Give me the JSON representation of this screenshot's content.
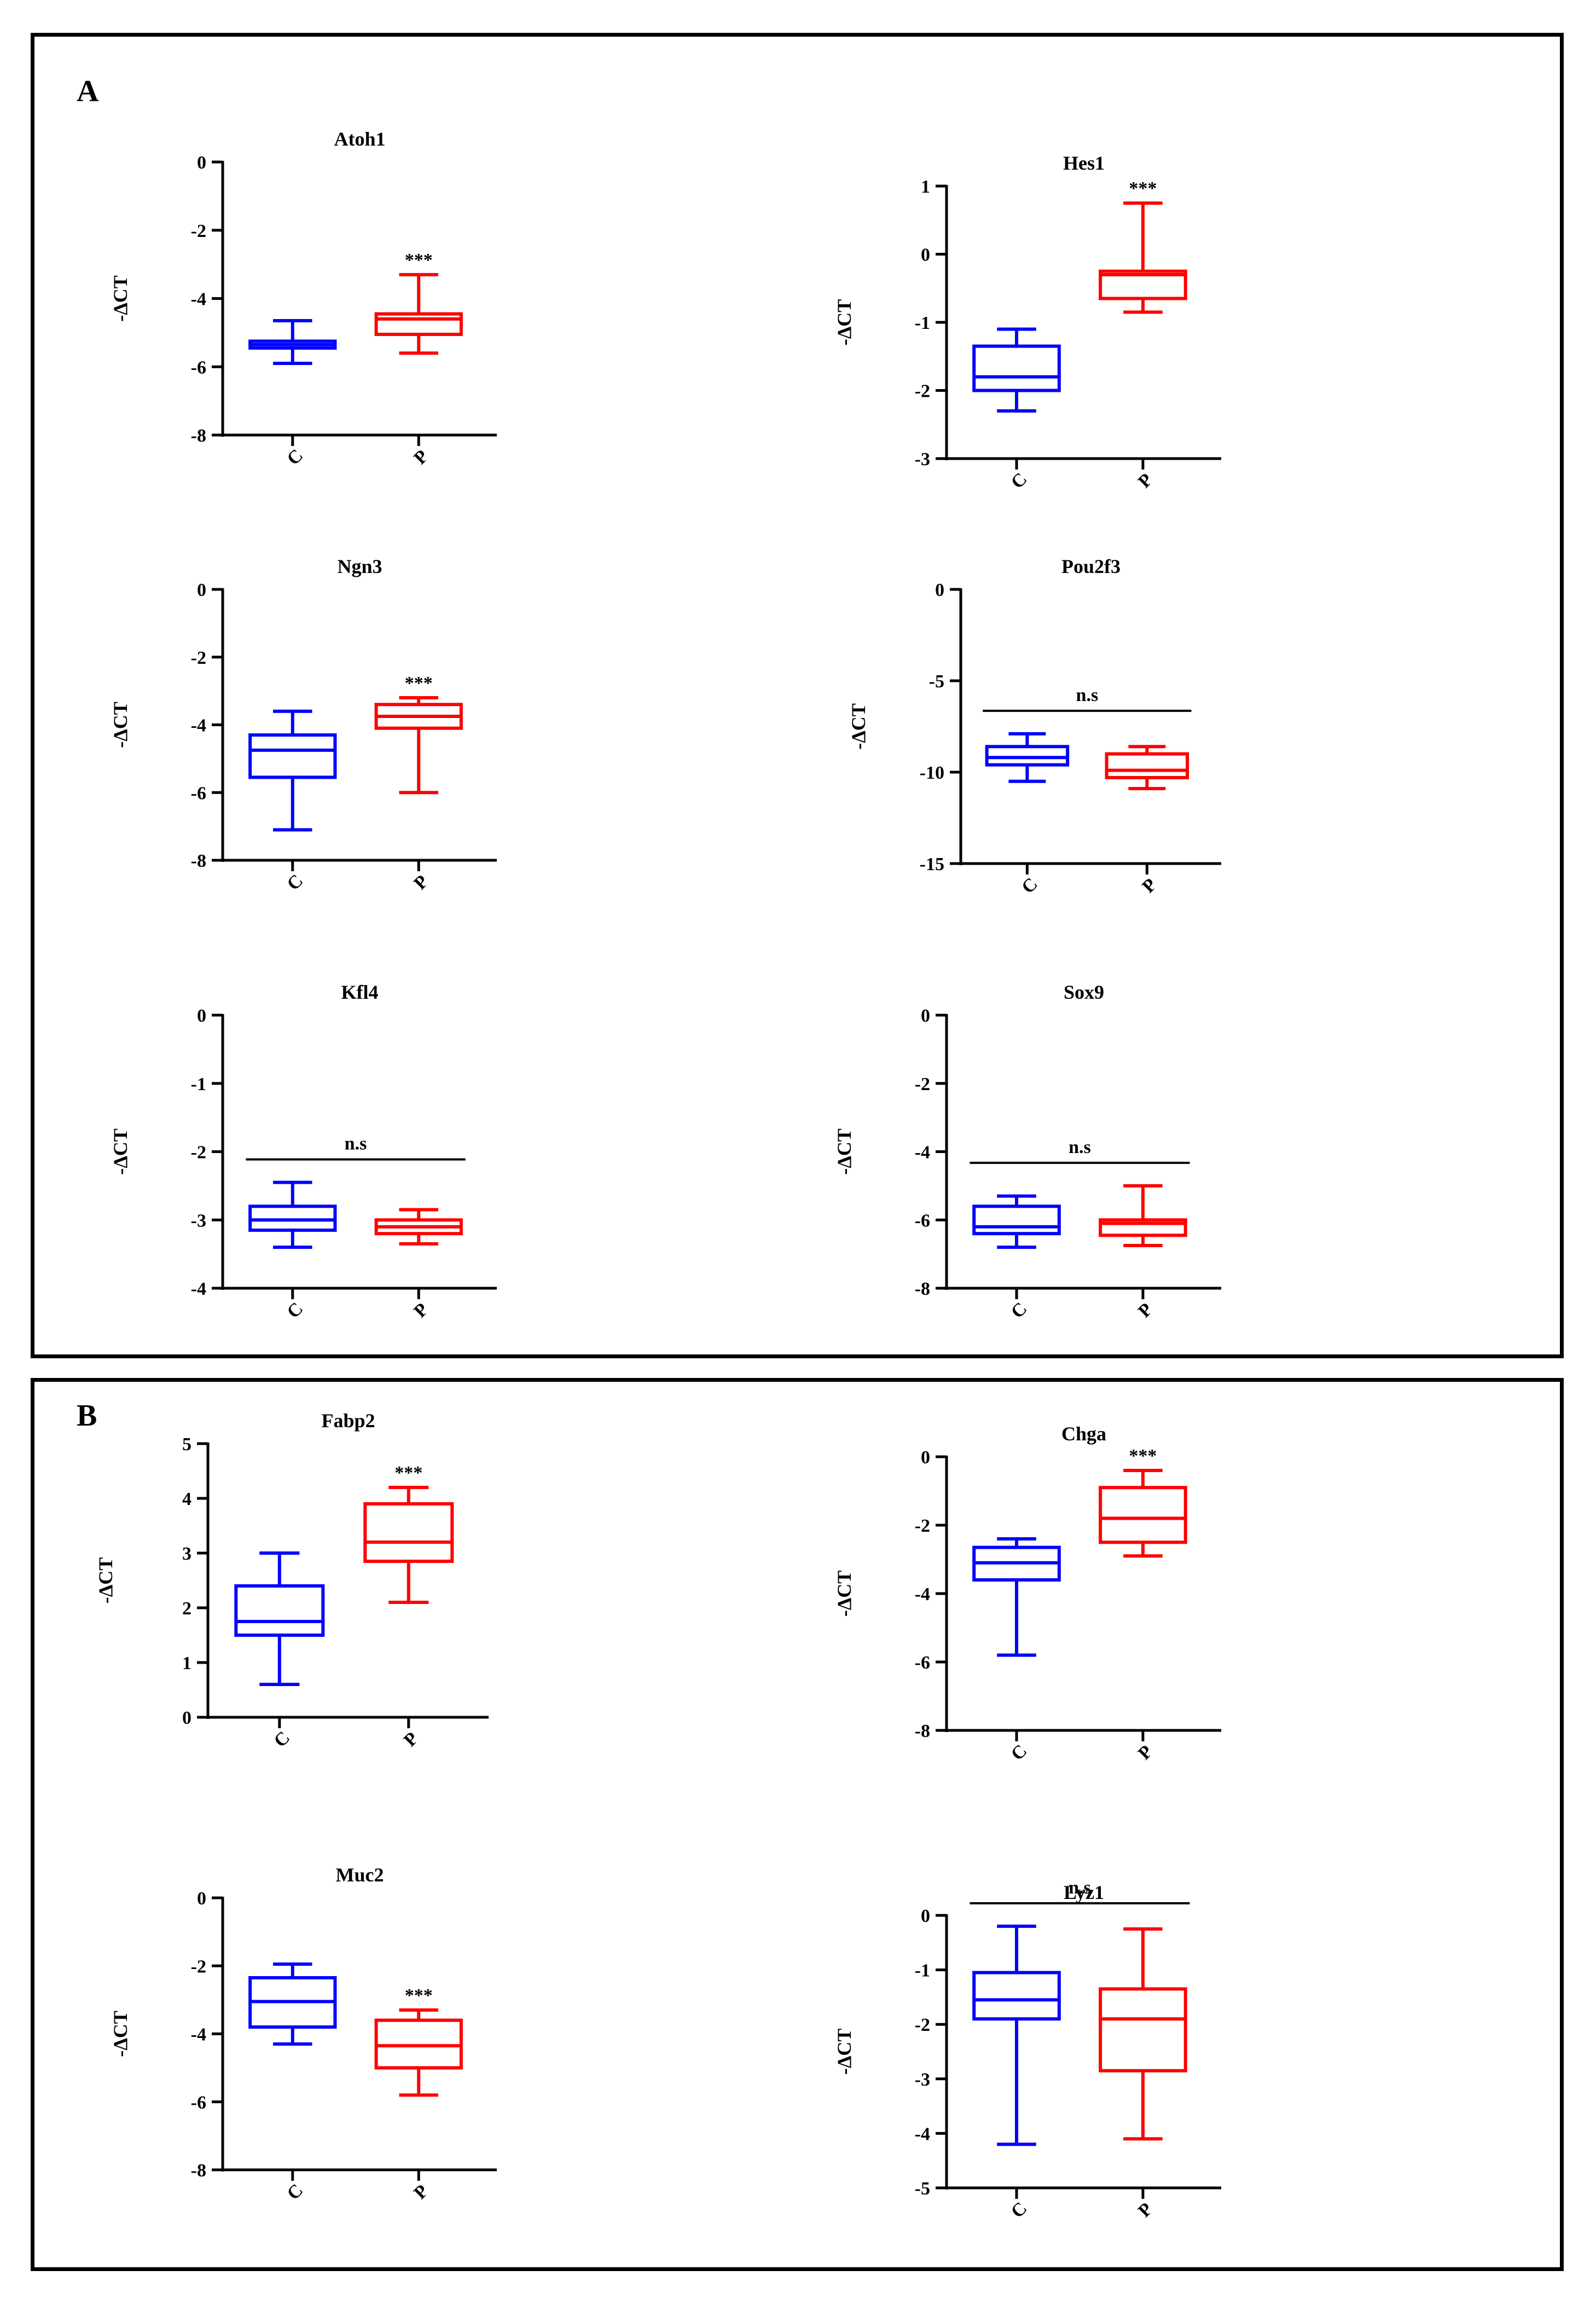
{
  "panels": [
    {
      "label": "A"
    },
    {
      "label": "B"
    }
  ],
  "colors": {
    "C": "#0000ff",
    "P": "#ff0000",
    "axis": "#000000"
  },
  "chart_data": [
    {
      "type": "box",
      "panel": "A",
      "title": "Atoh1",
      "ylabel": "-ΔCT",
      "ylim": [
        -8,
        0
      ],
      "yticks": [
        0,
        -2,
        -4,
        -6,
        -8
      ],
      "categories": [
        "C",
        "P"
      ],
      "significance": "***",
      "significance_style": "over-P",
      "series": [
        {
          "name": "C",
          "min": -5.9,
          "q1": -5.45,
          "median": -5.35,
          "q3": -5.25,
          "max": -4.65
        },
        {
          "name": "P",
          "min": -5.6,
          "q1": -5.05,
          "median": -4.6,
          "q3": -4.45,
          "max": -3.3
        }
      ]
    },
    {
      "type": "box",
      "panel": "A",
      "title": "Hes1",
      "ylabel": "-ΔCT",
      "ylim": [
        -3,
        1
      ],
      "yticks": [
        1,
        0,
        -1,
        -2,
        -3
      ],
      "categories": [
        "C",
        "P"
      ],
      "significance": "***",
      "significance_style": "over-P",
      "series": [
        {
          "name": "C",
          "min": -2.3,
          "q1": -2.0,
          "median": -1.8,
          "q3": -1.35,
          "max": -1.1
        },
        {
          "name": "P",
          "min": -0.85,
          "q1": -0.65,
          "median": -0.3,
          "q3": -0.25,
          "max": 0.75
        }
      ]
    },
    {
      "type": "box",
      "panel": "A",
      "title": "Ngn3",
      "ylabel": "-ΔCT",
      "ylim": [
        -8,
        0
      ],
      "yticks": [
        0,
        -2,
        -4,
        -6,
        -8
      ],
      "categories": [
        "C",
        "P"
      ],
      "significance": "***",
      "significance_style": "over-P",
      "series": [
        {
          "name": "C",
          "min": -7.1,
          "q1": -5.55,
          "median": -4.75,
          "q3": -4.3,
          "max": -3.6
        },
        {
          "name": "P",
          "min": -6.0,
          "q1": -4.1,
          "median": -3.75,
          "q3": -3.4,
          "max": -3.2
        }
      ]
    },
    {
      "type": "box",
      "panel": "A",
      "title": "Pou2f3",
      "ylabel": "-ΔCT",
      "ylim": [
        -15,
        0
      ],
      "yticks": [
        0,
        -5,
        -10,
        -15
      ],
      "categories": [
        "C",
        "P"
      ],
      "significance": "n.s",
      "significance_style": "bracket",
      "series": [
        {
          "name": "C",
          "min": -10.5,
          "q1": -9.6,
          "median": -9.2,
          "q3": -8.6,
          "max": -7.9
        },
        {
          "name": "P",
          "min": -10.9,
          "q1": -10.3,
          "median": -9.9,
          "q3": -9.0,
          "max": -8.6
        }
      ]
    },
    {
      "type": "box",
      "panel": "A",
      "title": "Kfl4",
      "ylabel": "-ΔCT",
      "ylim": [
        -4,
        0
      ],
      "yticks": [
        0,
        -1,
        -2,
        -3,
        -4
      ],
      "categories": [
        "C",
        "P"
      ],
      "significance": "n.s",
      "significance_style": "bracket",
      "series": [
        {
          "name": "C",
          "min": -3.4,
          "q1": -3.15,
          "median": -3.0,
          "q3": -2.8,
          "max": -2.45
        },
        {
          "name": "P",
          "min": -3.35,
          "q1": -3.2,
          "median": -3.1,
          "q3": -3.0,
          "max": -2.85
        }
      ]
    },
    {
      "type": "box",
      "panel": "A",
      "title": "Sox9",
      "ylabel": "-ΔCT",
      "ylim": [
        -8,
        0
      ],
      "yticks": [
        0,
        -2,
        -4,
        -6,
        -8
      ],
      "categories": [
        "C",
        "P"
      ],
      "significance": "n.s",
      "significance_style": "bracket",
      "series": [
        {
          "name": "C",
          "min": -6.8,
          "q1": -6.4,
          "median": -6.2,
          "q3": -5.6,
          "max": -5.3
        },
        {
          "name": "P",
          "min": -6.75,
          "q1": -6.45,
          "median": -6.1,
          "q3": -6.0,
          "max": -5.0
        }
      ]
    },
    {
      "type": "box",
      "panel": "B",
      "title": "Fabp2",
      "ylabel": "-ΔCT",
      "ylim": [
        0,
        5
      ],
      "yticks": [
        5,
        4,
        3,
        2,
        1,
        0
      ],
      "categories": [
        "C",
        "P"
      ],
      "significance": "***",
      "significance_style": "over-P",
      "series": [
        {
          "name": "C",
          "min": 0.6,
          "q1": 1.5,
          "median": 1.75,
          "q3": 2.4,
          "max": 3.0
        },
        {
          "name": "P",
          "min": 2.1,
          "q1": 2.85,
          "median": 3.2,
          "q3": 3.9,
          "max": 4.2
        }
      ]
    },
    {
      "type": "box",
      "panel": "B",
      "title": "Chga",
      "ylabel": "-ΔCT",
      "ylim": [
        -8,
        0
      ],
      "yticks": [
        0,
        -2,
        -4,
        -6,
        -8
      ],
      "categories": [
        "C",
        "P"
      ],
      "significance": "***",
      "significance_style": "over-P",
      "series": [
        {
          "name": "C",
          "min": -5.8,
          "q1": -3.6,
          "median": -3.1,
          "q3": -2.65,
          "max": -2.4
        },
        {
          "name": "P",
          "min": -2.9,
          "q1": -2.5,
          "median": -1.8,
          "q3": -0.9,
          "max": -0.4
        }
      ]
    },
    {
      "type": "box",
      "panel": "B",
      "title": "Muc2",
      "ylabel": "-ΔCT",
      "ylim": [
        -8,
        0
      ],
      "yticks": [
        0,
        -2,
        -4,
        -6,
        -8
      ],
      "categories": [
        "C",
        "P"
      ],
      "significance": "***",
      "significance_style": "over-P",
      "series": [
        {
          "name": "C",
          "min": -4.3,
          "q1": -3.8,
          "median": -3.05,
          "q3": -2.35,
          "max": -1.95
        },
        {
          "name": "P",
          "min": -5.8,
          "q1": -5.0,
          "median": -4.35,
          "q3": -3.6,
          "max": -3.3
        }
      ]
    },
    {
      "type": "box",
      "panel": "B",
      "title": "Lyz1",
      "ylabel": "-ΔCT",
      "ylim": [
        -5,
        0
      ],
      "yticks": [
        0,
        -1,
        -2,
        -3,
        -4,
        -5
      ],
      "categories": [
        "C",
        "P"
      ],
      "significance": "n.s",
      "significance_style": "bracket",
      "series": [
        {
          "name": "C",
          "min": -4.2,
          "q1": -1.9,
          "median": -1.55,
          "q3": -1.05,
          "max": -0.2
        },
        {
          "name": "P",
          "min": -4.1,
          "q1": -2.85,
          "median": -1.9,
          "q3": -1.35,
          "max": -0.25
        }
      ]
    }
  ]
}
